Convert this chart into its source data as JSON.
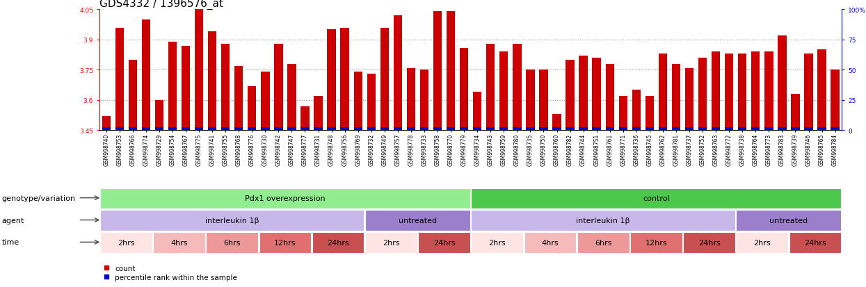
{
  "title": "GDS4332 / 1396576_at",
  "ylim": [
    3.45,
    4.05
  ],
  "yticks": [
    3.45,
    3.6,
    3.75,
    3.9,
    4.05
  ],
  "right_yticks": [
    0,
    25,
    50,
    75,
    100
  ],
  "right_yticklabels": [
    "0",
    "25",
    "50",
    "75",
    "100%"
  ],
  "samples": [
    "GSM998740",
    "GSM998753",
    "GSM998766",
    "GSM998774",
    "GSM998729",
    "GSM998754",
    "GSM998767",
    "GSM998775",
    "GSM998741",
    "GSM998755",
    "GSM998768",
    "GSM998776",
    "GSM998730",
    "GSM998742",
    "GSM998747",
    "GSM998777",
    "GSM998731",
    "GSM998748",
    "GSM998756",
    "GSM998769",
    "GSM998732",
    "GSM998749",
    "GSM998757",
    "GSM998778",
    "GSM998733",
    "GSM998758",
    "GSM998770",
    "GSM998779",
    "GSM998734",
    "GSM998743",
    "GSM998759",
    "GSM998780",
    "GSM998735",
    "GSM998750",
    "GSM998760",
    "GSM998782",
    "GSM998744",
    "GSM998751",
    "GSM998761",
    "GSM998771",
    "GSM998736",
    "GSM998745",
    "GSM998762",
    "GSM998781",
    "GSM998737",
    "GSM998752",
    "GSM998763",
    "GSM998772",
    "GSM998738",
    "GSM998764",
    "GSM998773",
    "GSM998783",
    "GSM998739",
    "GSM998746",
    "GSM998765",
    "GSM998784"
  ],
  "red_values": [
    3.52,
    3.96,
    3.8,
    4.0,
    3.6,
    3.89,
    3.87,
    4.05,
    3.94,
    3.88,
    3.77,
    3.67,
    3.74,
    3.88,
    3.78,
    3.57,
    3.62,
    3.95,
    3.96,
    3.74,
    3.73,
    3.96,
    4.02,
    3.76,
    3.75,
    4.04,
    4.04,
    3.86,
    3.64,
    3.88,
    3.84,
    3.88,
    3.75,
    3.75,
    3.53,
    3.8,
    3.82,
    3.81,
    3.78,
    3.62,
    3.65,
    3.62,
    3.83,
    3.78,
    3.76,
    3.81,
    3.84,
    3.83,
    3.83,
    3.84,
    3.84,
    3.92,
    3.63,
    3.83,
    3.85,
    3.75
  ],
  "annotation_rows": [
    {
      "label": "genotype/variation",
      "segments": [
        {
          "text": "Pdx1 overexpression",
          "start": 0,
          "end": 28,
          "color": "#90EE90"
        },
        {
          "text": "control",
          "start": 28,
          "end": 56,
          "color": "#4CC94C"
        }
      ]
    },
    {
      "label": "agent",
      "segments": [
        {
          "text": "interleukin 1β",
          "start": 0,
          "end": 20,
          "color": "#C8B8EA"
        },
        {
          "text": "untreated",
          "start": 20,
          "end": 28,
          "color": "#9B7FCC"
        },
        {
          "text": "interleukin 1β",
          "start": 28,
          "end": 48,
          "color": "#C8B8EA"
        },
        {
          "text": "untreated",
          "start": 48,
          "end": 56,
          "color": "#9B7FCC"
        }
      ]
    },
    {
      "label": "time",
      "segments": [
        {
          "text": "2hrs",
          "start": 0,
          "end": 4,
          "color": "#FFE4E4"
        },
        {
          "text": "4hrs",
          "start": 4,
          "end": 8,
          "color": "#F5BBBB"
        },
        {
          "text": "6hrs",
          "start": 8,
          "end": 12,
          "color": "#EE9999"
        },
        {
          "text": "12hrs",
          "start": 12,
          "end": 16,
          "color": "#E07070"
        },
        {
          "text": "24hrs",
          "start": 16,
          "end": 20,
          "color": "#C85050"
        },
        {
          "text": "2hrs",
          "start": 20,
          "end": 24,
          "color": "#FFE4E4"
        },
        {
          "text": "24hrs",
          "start": 24,
          "end": 28,
          "color": "#C85050"
        },
        {
          "text": "2hrs",
          "start": 28,
          "end": 32,
          "color": "#FFE4E4"
        },
        {
          "text": "4hrs",
          "start": 32,
          "end": 36,
          "color": "#F5BBBB"
        },
        {
          "text": "6hrs",
          "start": 36,
          "end": 40,
          "color": "#EE9999"
        },
        {
          "text": "12hrs",
          "start": 40,
          "end": 44,
          "color": "#E07070"
        },
        {
          "text": "24hrs",
          "start": 44,
          "end": 48,
          "color": "#C85050"
        },
        {
          "text": "2hrs",
          "start": 48,
          "end": 52,
          "color": "#FFE4E4"
        },
        {
          "text": "24hrs",
          "start": 52,
          "end": 56,
          "color": "#C85050"
        }
      ]
    }
  ],
  "bar_color": "#CC0000",
  "blue_bar_color": "#0000CC",
  "background_color": "#ffffff",
  "title_fontsize": 11,
  "tick_fontsize": 6.5,
  "xtick_fontsize": 5.5,
  "label_fontsize": 8,
  "annot_fontsize": 8
}
